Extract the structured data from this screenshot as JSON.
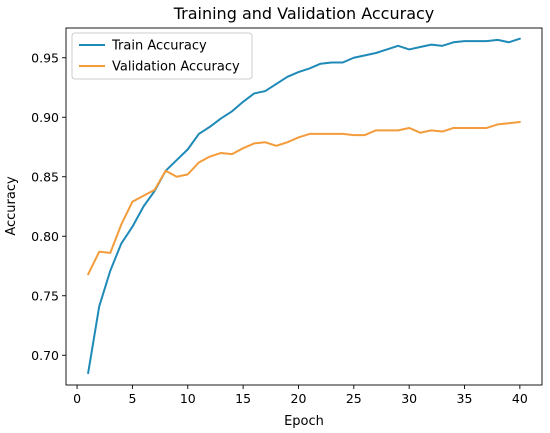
{
  "chart_data": {
    "type": "line",
    "title": "Training and Validation Accuracy",
    "xlabel": "Epoch",
    "ylabel": "Accuracy",
    "xlim": [
      -1,
      42
    ],
    "ylim": [
      0.675,
      0.975
    ],
    "xticks": [
      0,
      5,
      10,
      15,
      20,
      25,
      30,
      35,
      40
    ],
    "yticks": [
      0.7,
      0.75,
      0.8,
      0.85,
      0.9,
      0.95
    ],
    "grid": false,
    "legend_position": "top-left",
    "x": [
      1,
      2,
      3,
      4,
      5,
      6,
      7,
      8,
      9,
      10,
      11,
      12,
      13,
      14,
      15,
      16,
      17,
      18,
      19,
      20,
      21,
      22,
      23,
      24,
      25,
      26,
      27,
      28,
      29,
      30,
      31,
      32,
      33,
      34,
      35,
      36,
      37,
      38,
      39,
      40
    ],
    "series": [
      {
        "name": "Train Accuracy",
        "color": "#1f8ab8",
        "values": [
          0.685,
          0.741,
          0.771,
          0.794,
          0.808,
          0.825,
          0.838,
          0.855,
          0.864,
          0.873,
          0.886,
          0.892,
          0.899,
          0.905,
          0.913,
          0.92,
          0.922,
          0.928,
          0.934,
          0.938,
          0.941,
          0.945,
          0.946,
          0.946,
          0.95,
          0.952,
          0.954,
          0.957,
          0.96,
          0.957,
          0.959,
          0.961,
          0.96,
          0.963,
          0.964,
          0.964,
          0.964,
          0.965,
          0.963,
          0.966
        ]
      },
      {
        "name": "Validation Accuracy",
        "color": "#f39c3c",
        "values": [
          0.768,
          0.787,
          0.786,
          0.81,
          0.829,
          0.834,
          0.839,
          0.855,
          0.85,
          0.852,
          0.862,
          0.867,
          0.87,
          0.869,
          0.874,
          0.878,
          0.879,
          0.876,
          0.879,
          0.883,
          0.886,
          0.886,
          0.886,
          0.886,
          0.885,
          0.885,
          0.889,
          0.889,
          0.889,
          0.891,
          0.887,
          0.889,
          0.888,
          0.891,
          0.891,
          0.891,
          0.891,
          0.894,
          0.895,
          0.896
        ]
      }
    ]
  }
}
